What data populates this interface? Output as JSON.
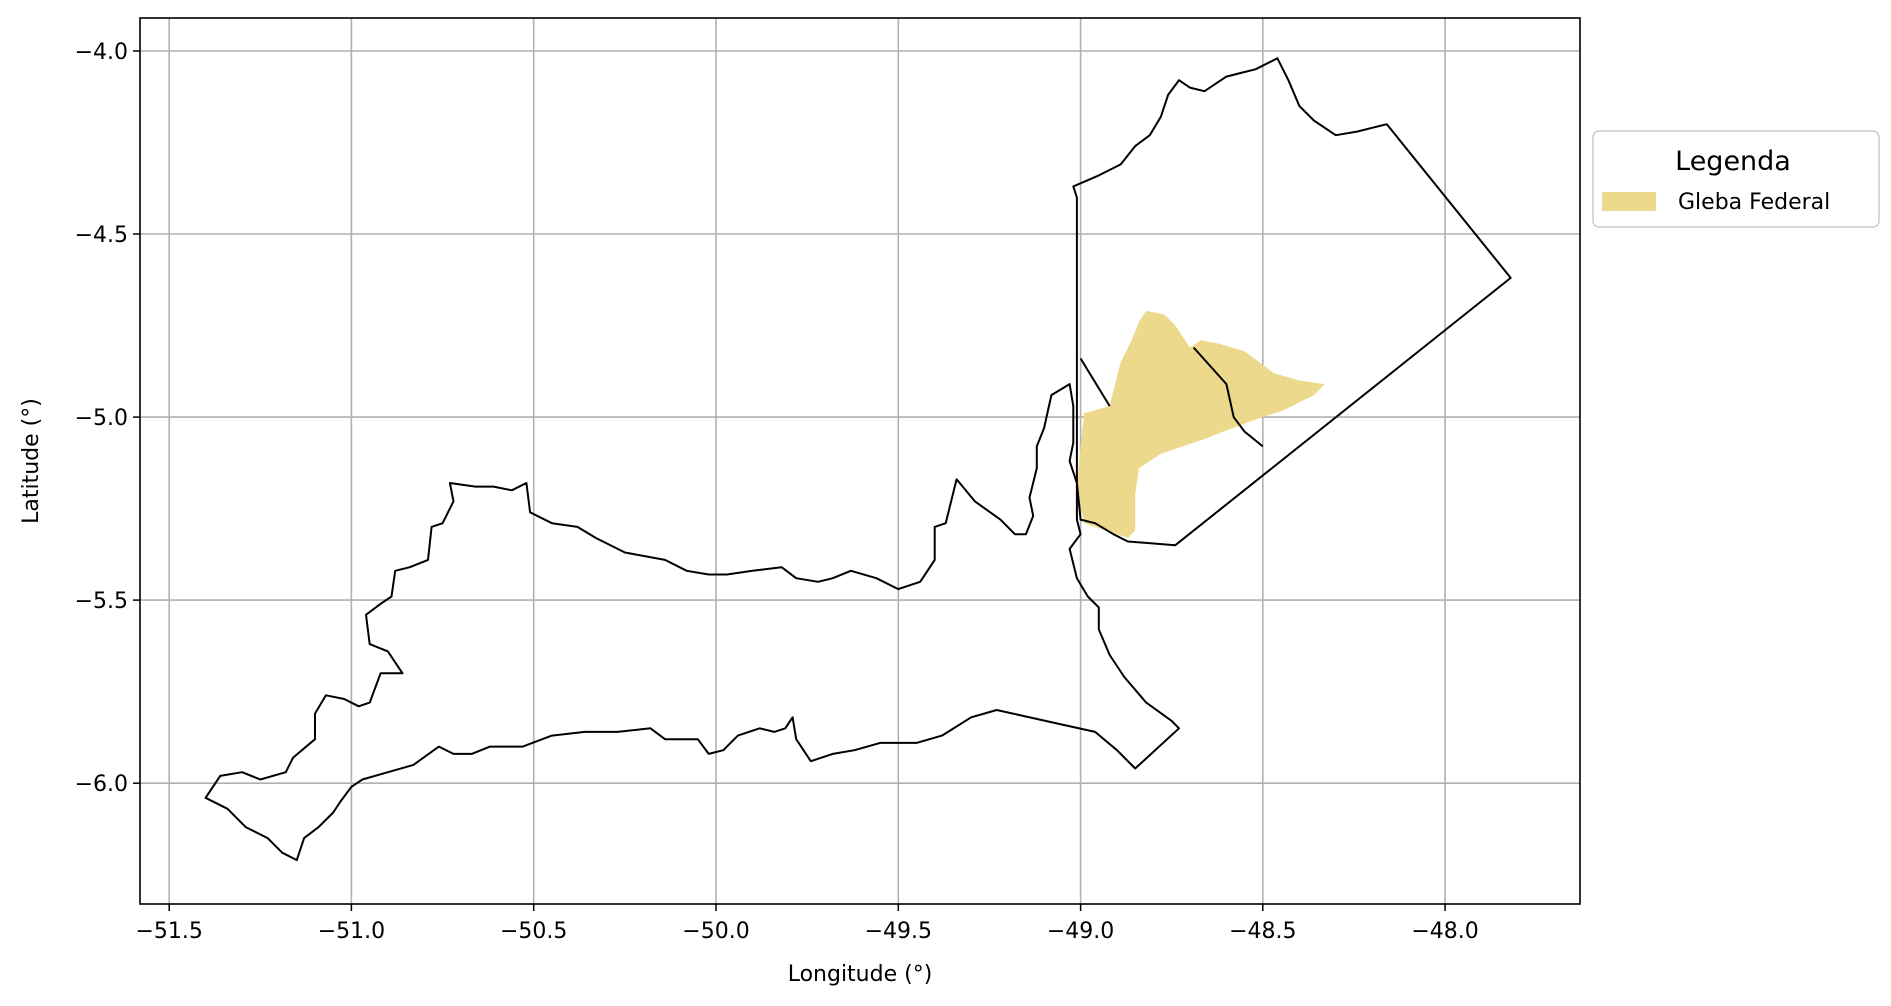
{
  "chart_data": {
    "type": "map",
    "xlabel": "Longitude (°)",
    "ylabel": "Latitude (°)",
    "xlim": [
      -51.58,
      -47.63
    ],
    "ylim": [
      -6.33,
      -3.91
    ],
    "xticks": [
      -51.5,
      -51.0,
      -50.5,
      -50.0,
      -49.5,
      -49.0,
      -48.5,
      -48.0
    ],
    "xtick_labels": [
      "−51.5",
      "−51.0",
      "−50.5",
      "−50.0",
      "−49.5",
      "−49.0",
      "−48.5",
      "−48.0"
    ],
    "yticks": [
      -4.0,
      -4.5,
      -5.0,
      -5.5,
      -6.0
    ],
    "ytick_labels": [
      "−4.0",
      "−4.5",
      "−5.0",
      "−5.5",
      "−6.0"
    ],
    "grid": true,
    "legend": {
      "title": "Legenda",
      "placement": "outside-right-top",
      "entries": [
        {
          "label": "Gleba Federal",
          "color": "#ecd98b"
        }
      ]
    },
    "colors": {
      "boundary": "#000000",
      "gleba_fill": "#ecd98b",
      "grid": "#b0b0b0"
    },
    "layers": {
      "west_boundary": [
        [
          -51.4,
          -6.04
        ],
        [
          -51.36,
          -5.98
        ],
        [
          -51.3,
          -5.97
        ],
        [
          -51.25,
          -5.99
        ],
        [
          -51.18,
          -5.97
        ],
        [
          -51.16,
          -5.93
        ],
        [
          -51.1,
          -5.88
        ],
        [
          -51.1,
          -5.81
        ],
        [
          -51.07,
          -5.76
        ],
        [
          -51.02,
          -5.77
        ],
        [
          -50.98,
          -5.79
        ],
        [
          -50.95,
          -5.78
        ],
        [
          -50.92,
          -5.7
        ],
        [
          -50.86,
          -5.7
        ],
        [
          -50.9,
          -5.64
        ],
        [
          -50.95,
          -5.62
        ],
        [
          -50.96,
          -5.54
        ],
        [
          -50.92,
          -5.51
        ],
        [
          -50.89,
          -5.49
        ],
        [
          -50.88,
          -5.42
        ],
        [
          -50.84,
          -5.41
        ],
        [
          -50.79,
          -5.39
        ],
        [
          -50.78,
          -5.3
        ],
        [
          -50.75,
          -5.29
        ],
        [
          -50.72,
          -5.23
        ],
        [
          -50.73,
          -5.18
        ],
        [
          -50.66,
          -5.19
        ],
        [
          -50.61,
          -5.19
        ],
        [
          -50.56,
          -5.2
        ],
        [
          -50.52,
          -5.18
        ],
        [
          -50.51,
          -5.26
        ],
        [
          -50.45,
          -5.29
        ],
        [
          -50.38,
          -5.3
        ],
        [
          -50.33,
          -5.33
        ],
        [
          -50.25,
          -5.37
        ],
        [
          -50.14,
          -5.39
        ],
        [
          -50.08,
          -5.42
        ],
        [
          -50.02,
          -5.43
        ],
        [
          -49.97,
          -5.43
        ],
        [
          -49.9,
          -5.42
        ],
        [
          -49.82,
          -5.41
        ],
        [
          -49.78,
          -5.44
        ],
        [
          -49.72,
          -5.45
        ],
        [
          -49.68,
          -5.44
        ],
        [
          -49.63,
          -5.42
        ],
        [
          -49.56,
          -5.44
        ],
        [
          -49.5,
          -5.47
        ],
        [
          -49.44,
          -5.45
        ],
        [
          -49.4,
          -5.39
        ],
        [
          -49.4,
          -5.3
        ],
        [
          -49.37,
          -5.29
        ],
        [
          -49.34,
          -5.17
        ],
        [
          -49.29,
          -5.23
        ],
        [
          -49.22,
          -5.28
        ],
        [
          -49.18,
          -5.32
        ],
        [
          -49.15,
          -5.32
        ],
        [
          -49.13,
          -5.27
        ],
        [
          -49.14,
          -5.22
        ],
        [
          -49.12,
          -5.14
        ],
        [
          -49.12,
          -5.08
        ],
        [
          -49.1,
          -5.03
        ],
        [
          -49.08,
          -4.94
        ],
        [
          -49.03,
          -4.91
        ],
        [
          -49.02,
          -4.97
        ],
        [
          -49.02,
          -5.07
        ],
        [
          -49.03,
          -5.12
        ],
        [
          -49.01,
          -5.18
        ],
        [
          -49.01,
          -5.28
        ],
        [
          -49.0,
          -5.32
        ],
        [
          -49.03,
          -5.36
        ],
        [
          -49.01,
          -5.44
        ],
        [
          -48.98,
          -5.49
        ],
        [
          -48.95,
          -5.52
        ],
        [
          -48.95,
          -5.58
        ],
        [
          -48.92,
          -5.65
        ],
        [
          -48.88,
          -5.71
        ],
        [
          -48.82,
          -5.78
        ],
        [
          -48.75,
          -5.83
        ],
        [
          -48.73,
          -5.85
        ],
        [
          -48.85,
          -5.96
        ],
        [
          -48.9,
          -5.91
        ],
        [
          -48.96,
          -5.86
        ],
        [
          -49.05,
          -5.84
        ],
        [
          -49.23,
          -5.8
        ],
        [
          -49.3,
          -5.82
        ],
        [
          -49.38,
          -5.87
        ],
        [
          -49.45,
          -5.89
        ],
        [
          -49.55,
          -5.89
        ],
        [
          -49.62,
          -5.91
        ],
        [
          -49.68,
          -5.92
        ],
        [
          -49.74,
          -5.94
        ],
        [
          -49.78,
          -5.88
        ],
        [
          -49.79,
          -5.82
        ],
        [
          -49.81,
          -5.85
        ],
        [
          -49.84,
          -5.86
        ],
        [
          -49.88,
          -5.85
        ],
        [
          -49.94,
          -5.87
        ],
        [
          -49.98,
          -5.91
        ],
        [
          -50.02,
          -5.92
        ],
        [
          -50.05,
          -5.88
        ],
        [
          -50.14,
          -5.88
        ],
        [
          -50.18,
          -5.85
        ],
        [
          -50.27,
          -5.86
        ],
        [
          -50.36,
          -5.86
        ],
        [
          -50.45,
          -5.87
        ],
        [
          -50.53,
          -5.9
        ],
        [
          -50.62,
          -5.9
        ],
        [
          -50.67,
          -5.92
        ],
        [
          -50.72,
          -5.92
        ],
        [
          -50.76,
          -5.9
        ],
        [
          -50.83,
          -5.95
        ],
        [
          -50.9,
          -5.97
        ],
        [
          -50.97,
          -5.99
        ],
        [
          -51.0,
          -6.01
        ],
        [
          -51.03,
          -6.05
        ],
        [
          -51.05,
          -6.08
        ],
        [
          -51.09,
          -6.12
        ],
        [
          -51.13,
          -6.15
        ],
        [
          -51.15,
          -6.21
        ],
        [
          -51.19,
          -6.19
        ],
        [
          -51.23,
          -6.15
        ],
        [
          -51.29,
          -6.12
        ],
        [
          -51.34,
          -6.07
        ],
        [
          -51.4,
          -6.04
        ]
      ],
      "east_boundary": [
        [
          -49.02,
          -4.37
        ],
        [
          -48.95,
          -4.34
        ],
        [
          -48.89,
          -4.31
        ],
        [
          -48.85,
          -4.26
        ],
        [
          -48.81,
          -4.23
        ],
        [
          -48.78,
          -4.18
        ],
        [
          -48.76,
          -4.12
        ],
        [
          -48.73,
          -4.08
        ],
        [
          -48.7,
          -4.1
        ],
        [
          -48.66,
          -4.11
        ],
        [
          -48.6,
          -4.07
        ],
        [
          -48.56,
          -4.06
        ],
        [
          -48.52,
          -4.05
        ],
        [
          -48.46,
          -4.02
        ],
        [
          -48.43,
          -4.08
        ],
        [
          -48.4,
          -4.15
        ],
        [
          -48.36,
          -4.19
        ],
        [
          -48.3,
          -4.23
        ],
        [
          -48.24,
          -4.22
        ],
        [
          -48.2,
          -4.21
        ],
        [
          -48.16,
          -4.2
        ],
        [
          -47.82,
          -4.62
        ],
        [
          -48.74,
          -5.35
        ],
        [
          -48.87,
          -5.34
        ],
        [
          -48.91,
          -5.32
        ],
        [
          -48.96,
          -5.29
        ],
        [
          -49.0,
          -5.28
        ],
        [
          -49.01,
          -5.18
        ],
        [
          -49.01,
          -5.08
        ],
        [
          -49.01,
          -4.92
        ],
        [
          -49.01,
          -4.75
        ],
        [
          -49.01,
          -4.55
        ],
        [
          -49.01,
          -4.4
        ],
        [
          -49.02,
          -4.37
        ]
      ],
      "internal_divider_1": [
        [
          -49.0,
          -4.84
        ],
        [
          -48.92,
          -4.97
        ]
      ],
      "internal_divider_2": [
        [
          -48.69,
          -4.81
        ],
        [
          -48.6,
          -4.91
        ],
        [
          -48.58,
          -5.0
        ],
        [
          -48.55,
          -5.04
        ],
        [
          -48.5,
          -5.08
        ]
      ],
      "gleba_polygon": [
        [
          -48.99,
          -4.99
        ],
        [
          -48.92,
          -4.97
        ],
        [
          -48.89,
          -4.85
        ],
        [
          -48.86,
          -4.79
        ],
        [
          -48.84,
          -4.74
        ],
        [
          -48.82,
          -4.71
        ],
        [
          -48.77,
          -4.72
        ],
        [
          -48.74,
          -4.75
        ],
        [
          -48.7,
          -4.81
        ],
        [
          -48.67,
          -4.79
        ],
        [
          -48.62,
          -4.8
        ],
        [
          -48.55,
          -4.82
        ],
        [
          -48.47,
          -4.88
        ],
        [
          -48.4,
          -4.9
        ],
        [
          -48.33,
          -4.91
        ],
        [
          -48.36,
          -4.94
        ],
        [
          -48.44,
          -4.98
        ],
        [
          -48.53,
          -5.01
        ],
        [
          -48.66,
          -5.06
        ],
        [
          -48.78,
          -5.1
        ],
        [
          -48.84,
          -5.14
        ],
        [
          -48.85,
          -5.21
        ],
        [
          -48.85,
          -5.31
        ],
        [
          -48.87,
          -5.33
        ],
        [
          -48.93,
          -5.31
        ],
        [
          -48.99,
          -5.29
        ],
        [
          -49.01,
          -5.19
        ],
        [
          -49.0,
          -5.08
        ],
        [
          -48.99,
          -4.99
        ]
      ]
    }
  }
}
